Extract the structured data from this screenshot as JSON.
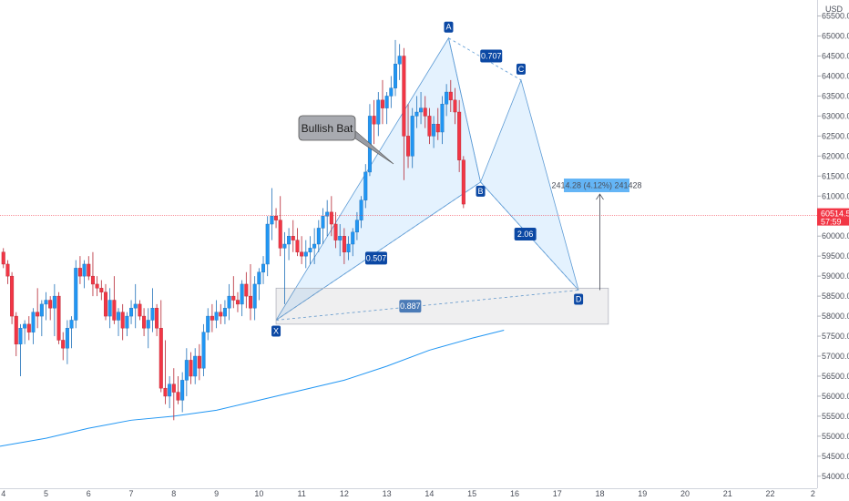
{
  "chart_data": {
    "type": "candlestick",
    "currency": "USD",
    "x_axis": {
      "tick_labels": [
        "4",
        "5",
        "6",
        "7",
        "8",
        "9",
        "10",
        "11",
        "12",
        "13",
        "14",
        "15",
        "16",
        "17",
        "18",
        "19",
        "20",
        "21",
        "22",
        "2"
      ],
      "range": [
        3.92,
        23.1
      ]
    },
    "y_axis": {
      "tick_labels": [
        "65500.00",
        "65000.00",
        "64500.00",
        "64000.00",
        "63500.00",
        "63000.00",
        "62500.00",
        "62000.00",
        "61500.00",
        "61000.00",
        "60500.00",
        "60000.00",
        "59500.00",
        "59000.00",
        "58500.00",
        "58000.00",
        "57500.00",
        "57000.00",
        "56500.00",
        "56000.00",
        "55500.00",
        "55000.00",
        "54500.00",
        "54000.00"
      ],
      "range": [
        53700,
        65900
      ]
    },
    "price_label": {
      "value": "60514.54",
      "time": "57:59",
      "price": 60514.54
    },
    "candles": [
      [
        4.0,
        59600,
        59700,
        59200,
        59300
      ],
      [
        4.1,
        59300,
        59400,
        58800,
        59000
      ],
      [
        4.2,
        59000,
        59100,
        57800,
        58000
      ],
      [
        4.3,
        58000,
        58100,
        57000,
        57300
      ],
      [
        4.4,
        57300,
        57800,
        56500,
        57700
      ],
      [
        4.5,
        57700,
        57900,
        57300,
        57800
      ],
      [
        4.6,
        57800,
        58000,
        57400,
        57600
      ],
      [
        4.7,
        57600,
        58200,
        57300,
        58100
      ],
      [
        4.8,
        58100,
        58700,
        57700,
        58000
      ],
      [
        4.9,
        58000,
        58400,
        57500,
        58300
      ],
      [
        5.0,
        58300,
        58600,
        57900,
        58400
      ],
      [
        5.1,
        58400,
        58500,
        57900,
        58200
      ],
      [
        5.2,
        58200,
        58800,
        57500,
        58500
      ],
      [
        5.3,
        58500,
        58600,
        57300,
        57400
      ],
      [
        5.4,
        57400,
        57600,
        56900,
        57200
      ],
      [
        5.5,
        57200,
        57900,
        56800,
        57700
      ],
      [
        5.6,
        57700,
        58000,
        57200,
        57900
      ],
      [
        5.7,
        57900,
        59400,
        57700,
        59200
      ],
      [
        5.8,
        59200,
        59500,
        58800,
        59000
      ],
      [
        5.9,
        59000,
        59400,
        58700,
        59300
      ],
      [
        6.0,
        59300,
        59500,
        58900,
        59000
      ],
      [
        6.1,
        59000,
        59600,
        58500,
        58800
      ],
      [
        6.2,
        58800,
        59000,
        58500,
        58700
      ],
      [
        6.3,
        58700,
        58900,
        58400,
        58600
      ],
      [
        6.4,
        58600,
        58800,
        57900,
        58000
      ],
      [
        6.5,
        58000,
        58700,
        57700,
        58400
      ],
      [
        6.6,
        58400,
        59000,
        57800,
        57900
      ],
      [
        6.7,
        57900,
        58200,
        57500,
        58100
      ],
      [
        6.8,
        58100,
        58300,
        57400,
        57700
      ],
      [
        6.9,
        57700,
        58100,
        57500,
        58000
      ],
      [
        7.0,
        58000,
        58400,
        57800,
        58200
      ],
      [
        7.1,
        58200,
        58800,
        57700,
        58300
      ],
      [
        7.2,
        58300,
        58400,
        57900,
        58000
      ],
      [
        7.3,
        58000,
        58200,
        57500,
        57700
      ],
      [
        7.4,
        57700,
        58200,
        57200,
        57900
      ],
      [
        7.5,
        57900,
        58700,
        57600,
        58200
      ],
      [
        7.6,
        58200,
        58300,
        57500,
        57700
      ],
      [
        7.7,
        57700,
        58400,
        56100,
        56200
      ],
      [
        7.8,
        56200,
        57400,
        55800,
        56000
      ],
      [
        7.9,
        56000,
        56500,
        55700,
        56300
      ],
      [
        8.0,
        56300,
        56700,
        55400,
        56100
      ],
      [
        8.1,
        56100,
        56500,
        55800,
        55900
      ],
      [
        8.2,
        55900,
        56600,
        55600,
        56400
      ],
      [
        8.3,
        56400,
        57200,
        56000,
        56900
      ],
      [
        8.4,
        56900,
        57100,
        56300,
        56500
      ],
      [
        8.5,
        56500,
        57200,
        56300,
        57000
      ],
      [
        8.6,
        57000,
        57300,
        56400,
        56700
      ],
      [
        8.7,
        56700,
        57800,
        56500,
        57600
      ],
      [
        8.8,
        57600,
        58200,
        57400,
        58000
      ],
      [
        8.9,
        58000,
        58300,
        57600,
        57900
      ],
      [
        9.0,
        57900,
        58400,
        57700,
        58100
      ],
      [
        9.1,
        58100,
        58300,
        57800,
        58000
      ],
      [
        9.2,
        58000,
        58400,
        57800,
        58200
      ],
      [
        9.3,
        58200,
        58800,
        57900,
        58500
      ],
      [
        9.4,
        58500,
        59000,
        58200,
        58400
      ],
      [
        9.5,
        58400,
        58600,
        58100,
        58300
      ],
      [
        9.6,
        58300,
        58900,
        58000,
        58800
      ],
      [
        9.7,
        58800,
        59100,
        58200,
        58500
      ],
      [
        9.8,
        58500,
        59300,
        57900,
        58200
      ],
      [
        9.9,
        58200,
        59000,
        57900,
        58800
      ],
      [
        10.0,
        58800,
        59200,
        58400,
        59100
      ],
      [
        10.1,
        59100,
        59500,
        58800,
        59300
      ],
      [
        10.2,
        59300,
        60500,
        59000,
        60300
      ],
      [
        10.3,
        60300,
        61200,
        59900,
        60500
      ],
      [
        10.4,
        60500,
        60700,
        60200,
        60400
      ],
      [
        10.5,
        60400,
        61000,
        59500,
        59700
      ],
      [
        10.6,
        59700,
        60100,
        58300,
        59800
      ],
      [
        10.7,
        59800,
        60200,
        59400,
        60000
      ],
      [
        10.8,
        60000,
        60400,
        59600,
        59900
      ],
      [
        10.9,
        59900,
        60200,
        59500,
        59600
      ],
      [
        11.0,
        59600,
        60000,
        59300,
        59500
      ],
      [
        11.1,
        59500,
        59900,
        59200,
        59600
      ],
      [
        11.2,
        59600,
        60000,
        59300,
        59700
      ],
      [
        11.3,
        59700,
        60200,
        59300,
        59800
      ],
      [
        11.4,
        59800,
        60400,
        59600,
        60200
      ],
      [
        11.5,
        60200,
        60700,
        59800,
        60500
      ],
      [
        11.6,
        60500,
        60900,
        60000,
        60600
      ],
      [
        11.7,
        60600,
        61000,
        60000,
        60300
      ],
      [
        11.8,
        60300,
        60600,
        59700,
        59900
      ],
      [
        11.9,
        59900,
        60300,
        59500,
        60000
      ],
      [
        12.0,
        60000,
        60200,
        59300,
        59600
      ],
      [
        12.1,
        59600,
        60000,
        59400,
        59800
      ],
      [
        12.2,
        59800,
        60200,
        59500,
        60100
      ],
      [
        12.3,
        60100,
        60600,
        59900,
        60400
      ],
      [
        12.4,
        60400,
        61000,
        60200,
        60900
      ],
      [
        12.5,
        60900,
        61800,
        60700,
        61600
      ],
      [
        12.6,
        61600,
        63300,
        61500,
        63000
      ],
      [
        12.7,
        63000,
        63400,
        62300,
        62800
      ],
      [
        12.8,
        62800,
        63600,
        62500,
        63400
      ],
      [
        12.9,
        63400,
        63900,
        62800,
        63200
      ],
      [
        13.0,
        63200,
        63600,
        62800,
        63500
      ],
      [
        13.1,
        63500,
        64000,
        63200,
        63700
      ],
      [
        13.2,
        63700,
        64900,
        63500,
        64300
      ],
      [
        13.3,
        64300,
        64800,
        63900,
        64500
      ],
      [
        13.4,
        64500,
        64700,
        61400,
        62500
      ],
      [
        13.5,
        62500,
        63300,
        61700,
        62000
      ],
      [
        13.6,
        62000,
        63200,
        61700,
        63000
      ],
      [
        13.7,
        63000,
        63500,
        62700,
        63100
      ],
      [
        13.8,
        63100,
        63600,
        62800,
        63200
      ],
      [
        13.9,
        63200,
        63500,
        62700,
        63000
      ],
      [
        14.0,
        63000,
        63200,
        62300,
        62500
      ],
      [
        14.1,
        62500,
        63000,
        62200,
        62800
      ],
      [
        14.2,
        62800,
        63200,
        62400,
        62600
      ],
      [
        14.3,
        62600,
        63500,
        62300,
        63300
      ],
      [
        14.4,
        63300,
        63800,
        63000,
        63600
      ],
      [
        14.5,
        63600,
        63900,
        63100,
        63400
      ],
      [
        14.6,
        63400,
        63700,
        62800,
        63100
      ],
      [
        14.7,
        63100,
        63400,
        61600,
        61900
      ],
      [
        14.8,
        61900,
        62000,
        60700,
        60800
      ]
    ],
    "moving_average": [
      [
        3.92,
        54750
      ],
      [
        5.0,
        54950
      ],
      [
        6.0,
        55200
      ],
      [
        7.0,
        55400
      ],
      [
        8.0,
        55500
      ],
      [
        9.0,
        55650
      ],
      [
        10.0,
        55900
      ],
      [
        11.0,
        56150
      ],
      [
        12.0,
        56400
      ],
      [
        13.0,
        56750
      ],
      [
        14.0,
        57150
      ],
      [
        15.0,
        57450
      ],
      [
        15.75,
        57650
      ]
    ],
    "pattern": {
      "name": "Bullish Bat",
      "points": [
        {
          "name": "X",
          "x": 10.4,
          "y": 57900
        },
        {
          "name": "A",
          "x": 14.45,
          "y": 64950
        },
        {
          "name": "B",
          "x": 15.2,
          "y": 61350
        },
        {
          "name": "C",
          "x": 16.15,
          "y": 63900
        },
        {
          "name": "D",
          "x": 17.5,
          "y": 58650
        }
      ],
      "ratios": [
        {
          "label": "0.707",
          "x": 15.45,
          "y": 64500
        },
        {
          "label": "0.507",
          "x": 12.75,
          "y": 59450
        },
        {
          "label": "2.06",
          "x": 16.25,
          "y": 60050
        },
        {
          "label": "0.887",
          "x": 13.55,
          "y": 58250
        }
      ],
      "prz_box": {
        "x_from": 10.4,
        "x_to": 18.2,
        "y_from": 57800,
        "y_to": 58700
      }
    },
    "target_label": "2414.28 (4.12%) 241428",
    "target_arrow": {
      "x": 18.0,
      "y_from": 58650,
      "y_to": 61050
    }
  }
}
